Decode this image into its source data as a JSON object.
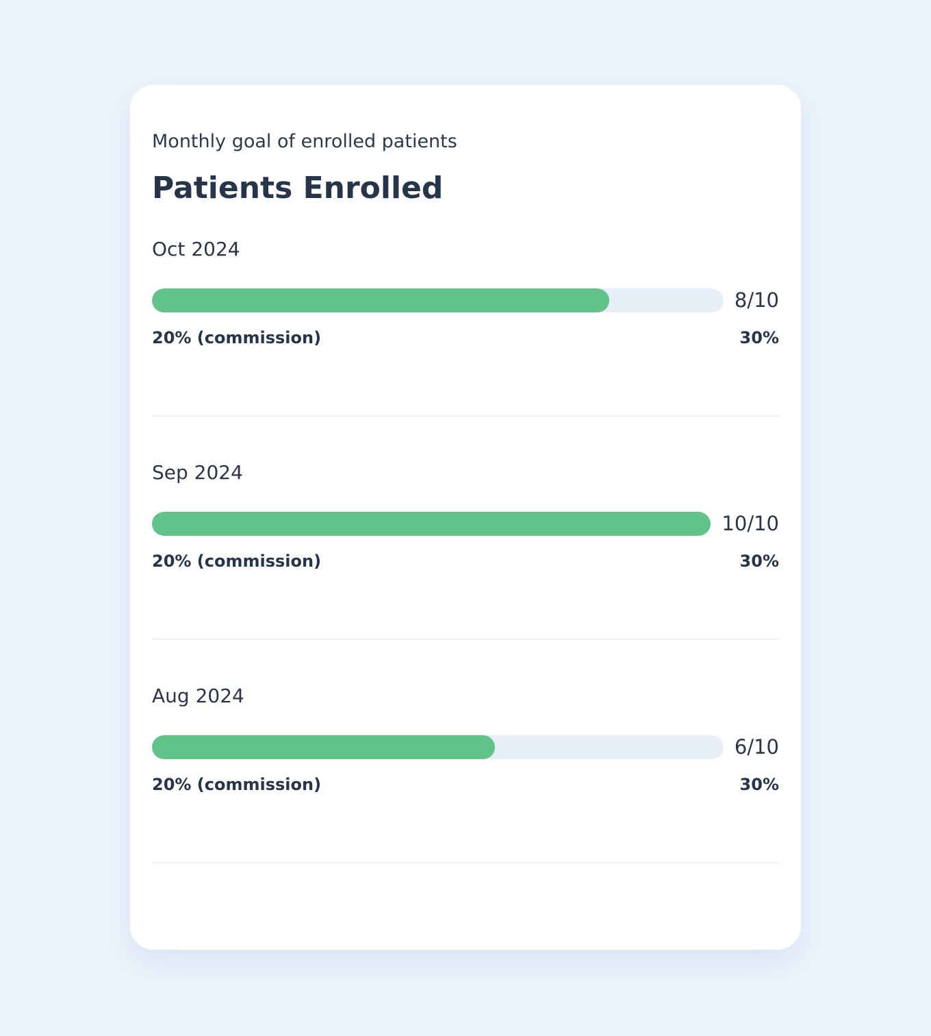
{
  "card": {
    "subtitle": "Monthly goal of enrolled patients",
    "title": "Patients Enrolled"
  },
  "colors": {
    "page_background": "#edf3fb",
    "card_background": "#ffffff",
    "bar_fill": "#61c387",
    "bar_track": "#e7eef7",
    "text": "#2a3547"
  },
  "months": [
    {
      "label": "Oct 2024",
      "enrolled": 8,
      "goal": 10,
      "count_text": "8/10",
      "left_text": "20% (commission)",
      "right_text": "30%"
    },
    {
      "label": "Sep 2024",
      "enrolled": 10,
      "goal": 10,
      "count_text": "10/10",
      "left_text": "20% (commission)",
      "right_text": "30%"
    },
    {
      "label": "Aug 2024",
      "enrolled": 6,
      "goal": 10,
      "count_text": "6/10",
      "left_text": "20% (commission)",
      "right_text": "30%"
    }
  ]
}
